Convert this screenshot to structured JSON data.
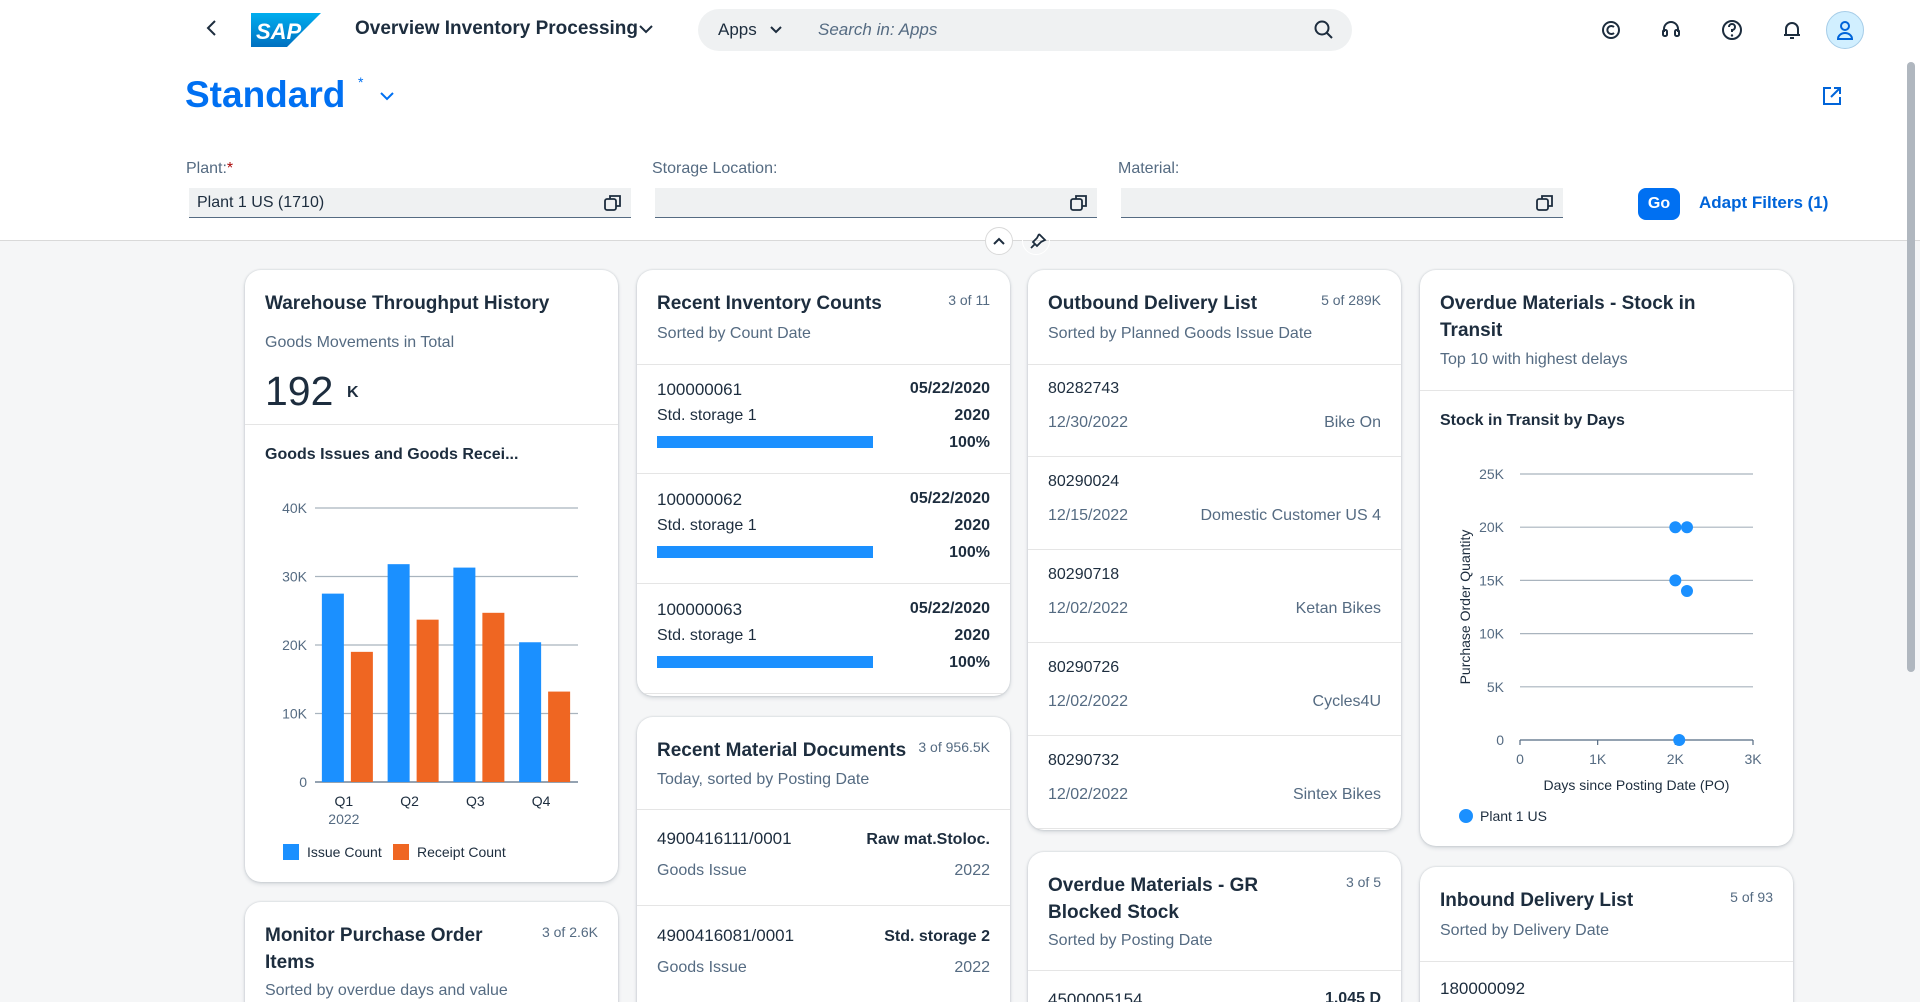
{
  "shell": {
    "app_title": "Overview Inventory Processing",
    "search_scope": "Apps",
    "search_placeholder": "Search in: Apps",
    "logo_text": "SAP"
  },
  "header": {
    "variant": "Standard",
    "variant_modified": "*",
    "filters": [
      {
        "label": "Plant:",
        "required": "*",
        "value": "Plant 1 US (1710)"
      },
      {
        "label": "Storage Location:",
        "value": ""
      },
      {
        "label": "Material:",
        "value": ""
      }
    ],
    "go_label": "Go",
    "adapt_label": "Adapt Filters (1)"
  },
  "cards": {
    "throughput": {
      "title": "Warehouse Throughput History",
      "subtitle": "Goods Movements in Total",
      "kpi": "192",
      "unit": "K",
      "chart_title": "Goods Issues and Goods Recei..."
    },
    "inventory_counts": {
      "title": "Recent Inventory Counts",
      "count": "3 of 11",
      "subtitle": "Sorted by Count Date",
      "items": [
        {
          "id": "100000061",
          "location": "Std. storage 1",
          "date": "05/22/2020",
          "year": "2020",
          "percent": "100%",
          "progress": 1.0
        },
        {
          "id": "100000062",
          "location": "Std. storage 1",
          "date": "05/22/2020",
          "year": "2020",
          "percent": "100%",
          "progress": 1.0
        },
        {
          "id": "100000063",
          "location": "Std. storage 1",
          "date": "05/22/2020",
          "year": "2020",
          "percent": "100%",
          "progress": 1.0
        }
      ]
    },
    "material_docs": {
      "title": "Recent Material Documents",
      "count": "3 of 956.5K",
      "subtitle": "Today, sorted by Posting Date",
      "items": [
        {
          "id": "4900416111/0001",
          "type": "Goods Issue",
          "location": "Raw mat.Stoloc.",
          "year": "2022"
        },
        {
          "id": "4900416081/0001",
          "type": "Goods Issue",
          "location": "Std. storage 2",
          "year": "2022"
        }
      ]
    },
    "outbound": {
      "title": "Outbound Delivery List",
      "count": "5 of 289K",
      "subtitle": "Sorted by Planned Goods Issue Date",
      "items": [
        {
          "id": "80282743",
          "date": "12/30/2022",
          "customer": "Bike On"
        },
        {
          "id": "80290024",
          "date": "12/15/2022",
          "customer": "Domestic Customer US 4"
        },
        {
          "id": "80290718",
          "date": "12/02/2022",
          "customer": "Ketan Bikes"
        },
        {
          "id": "80290726",
          "date": "12/02/2022",
          "customer": "Cycles4U"
        },
        {
          "id": "80290732",
          "date": "12/02/2022",
          "customer": "Sintex Bikes"
        }
      ]
    },
    "gr_blocked": {
      "title_line1": "Overdue Materials - GR",
      "title_line2": "Blocked Stock",
      "count": "3 of 5",
      "subtitle": "Sorted by Posting Date",
      "partial_id": "4500005154",
      "partial_value": "1,045 D"
    },
    "transit": {
      "title_line1": "Overdue Materials - Stock in",
      "title_line2": "Transit",
      "subtitle": "Top 10 with highest delays",
      "chart_title": "Stock in Transit by Days"
    },
    "purchase_orders": {
      "title_line1": "Monitor Purchase Order",
      "title_line2": "Items",
      "count": "3 of 2.6K",
      "subtitle": "Sorted by overdue days and value"
    },
    "inbound": {
      "title": "Inbound Delivery List",
      "count": "5 of 93",
      "subtitle": "Sorted by Delivery Date",
      "first_id": "180000092"
    }
  },
  "chart_data": [
    {
      "type": "bar",
      "title": "Goods Issues and Goods Recei...",
      "categories": [
        "Q1",
        "Q2",
        "Q3",
        "Q4"
      ],
      "category_sublabel": "2022",
      "series": [
        {
          "name": "Issue Count",
          "color": "#1b90ff",
          "values": [
            27500,
            31800,
            31300,
            20400
          ]
        },
        {
          "name": "Receipt Count",
          "color": "#ef6622",
          "values": [
            19000,
            23700,
            24700,
            13200
          ]
        }
      ],
      "ylim": [
        0,
        40000
      ],
      "yticks": [
        "0",
        "10K",
        "20K",
        "30K",
        "40K"
      ],
      "legend": "bottom"
    },
    {
      "type": "scatter",
      "title": "Stock in Transit by Days",
      "xlabel": "Days since Posting Date (PO)",
      "ylabel": "Purchase Order Quantity",
      "xlim": [
        0,
        3000
      ],
      "ylim": [
        0,
        25000
      ],
      "xticks": [
        "0",
        "1K",
        "2K",
        "3K"
      ],
      "yticks": [
        "0",
        "5K",
        "10K",
        "15K",
        "20K",
        "25K"
      ],
      "series": [
        {
          "name": "Plant 1 US",
          "color": "#1b90ff",
          "points": [
            [
              2000,
              20000
            ],
            [
              2150,
              20000
            ],
            [
              2000,
              15000
            ],
            [
              2150,
              14000
            ],
            [
              2050,
              0
            ]
          ]
        }
      ],
      "legend": "bottom"
    }
  ]
}
